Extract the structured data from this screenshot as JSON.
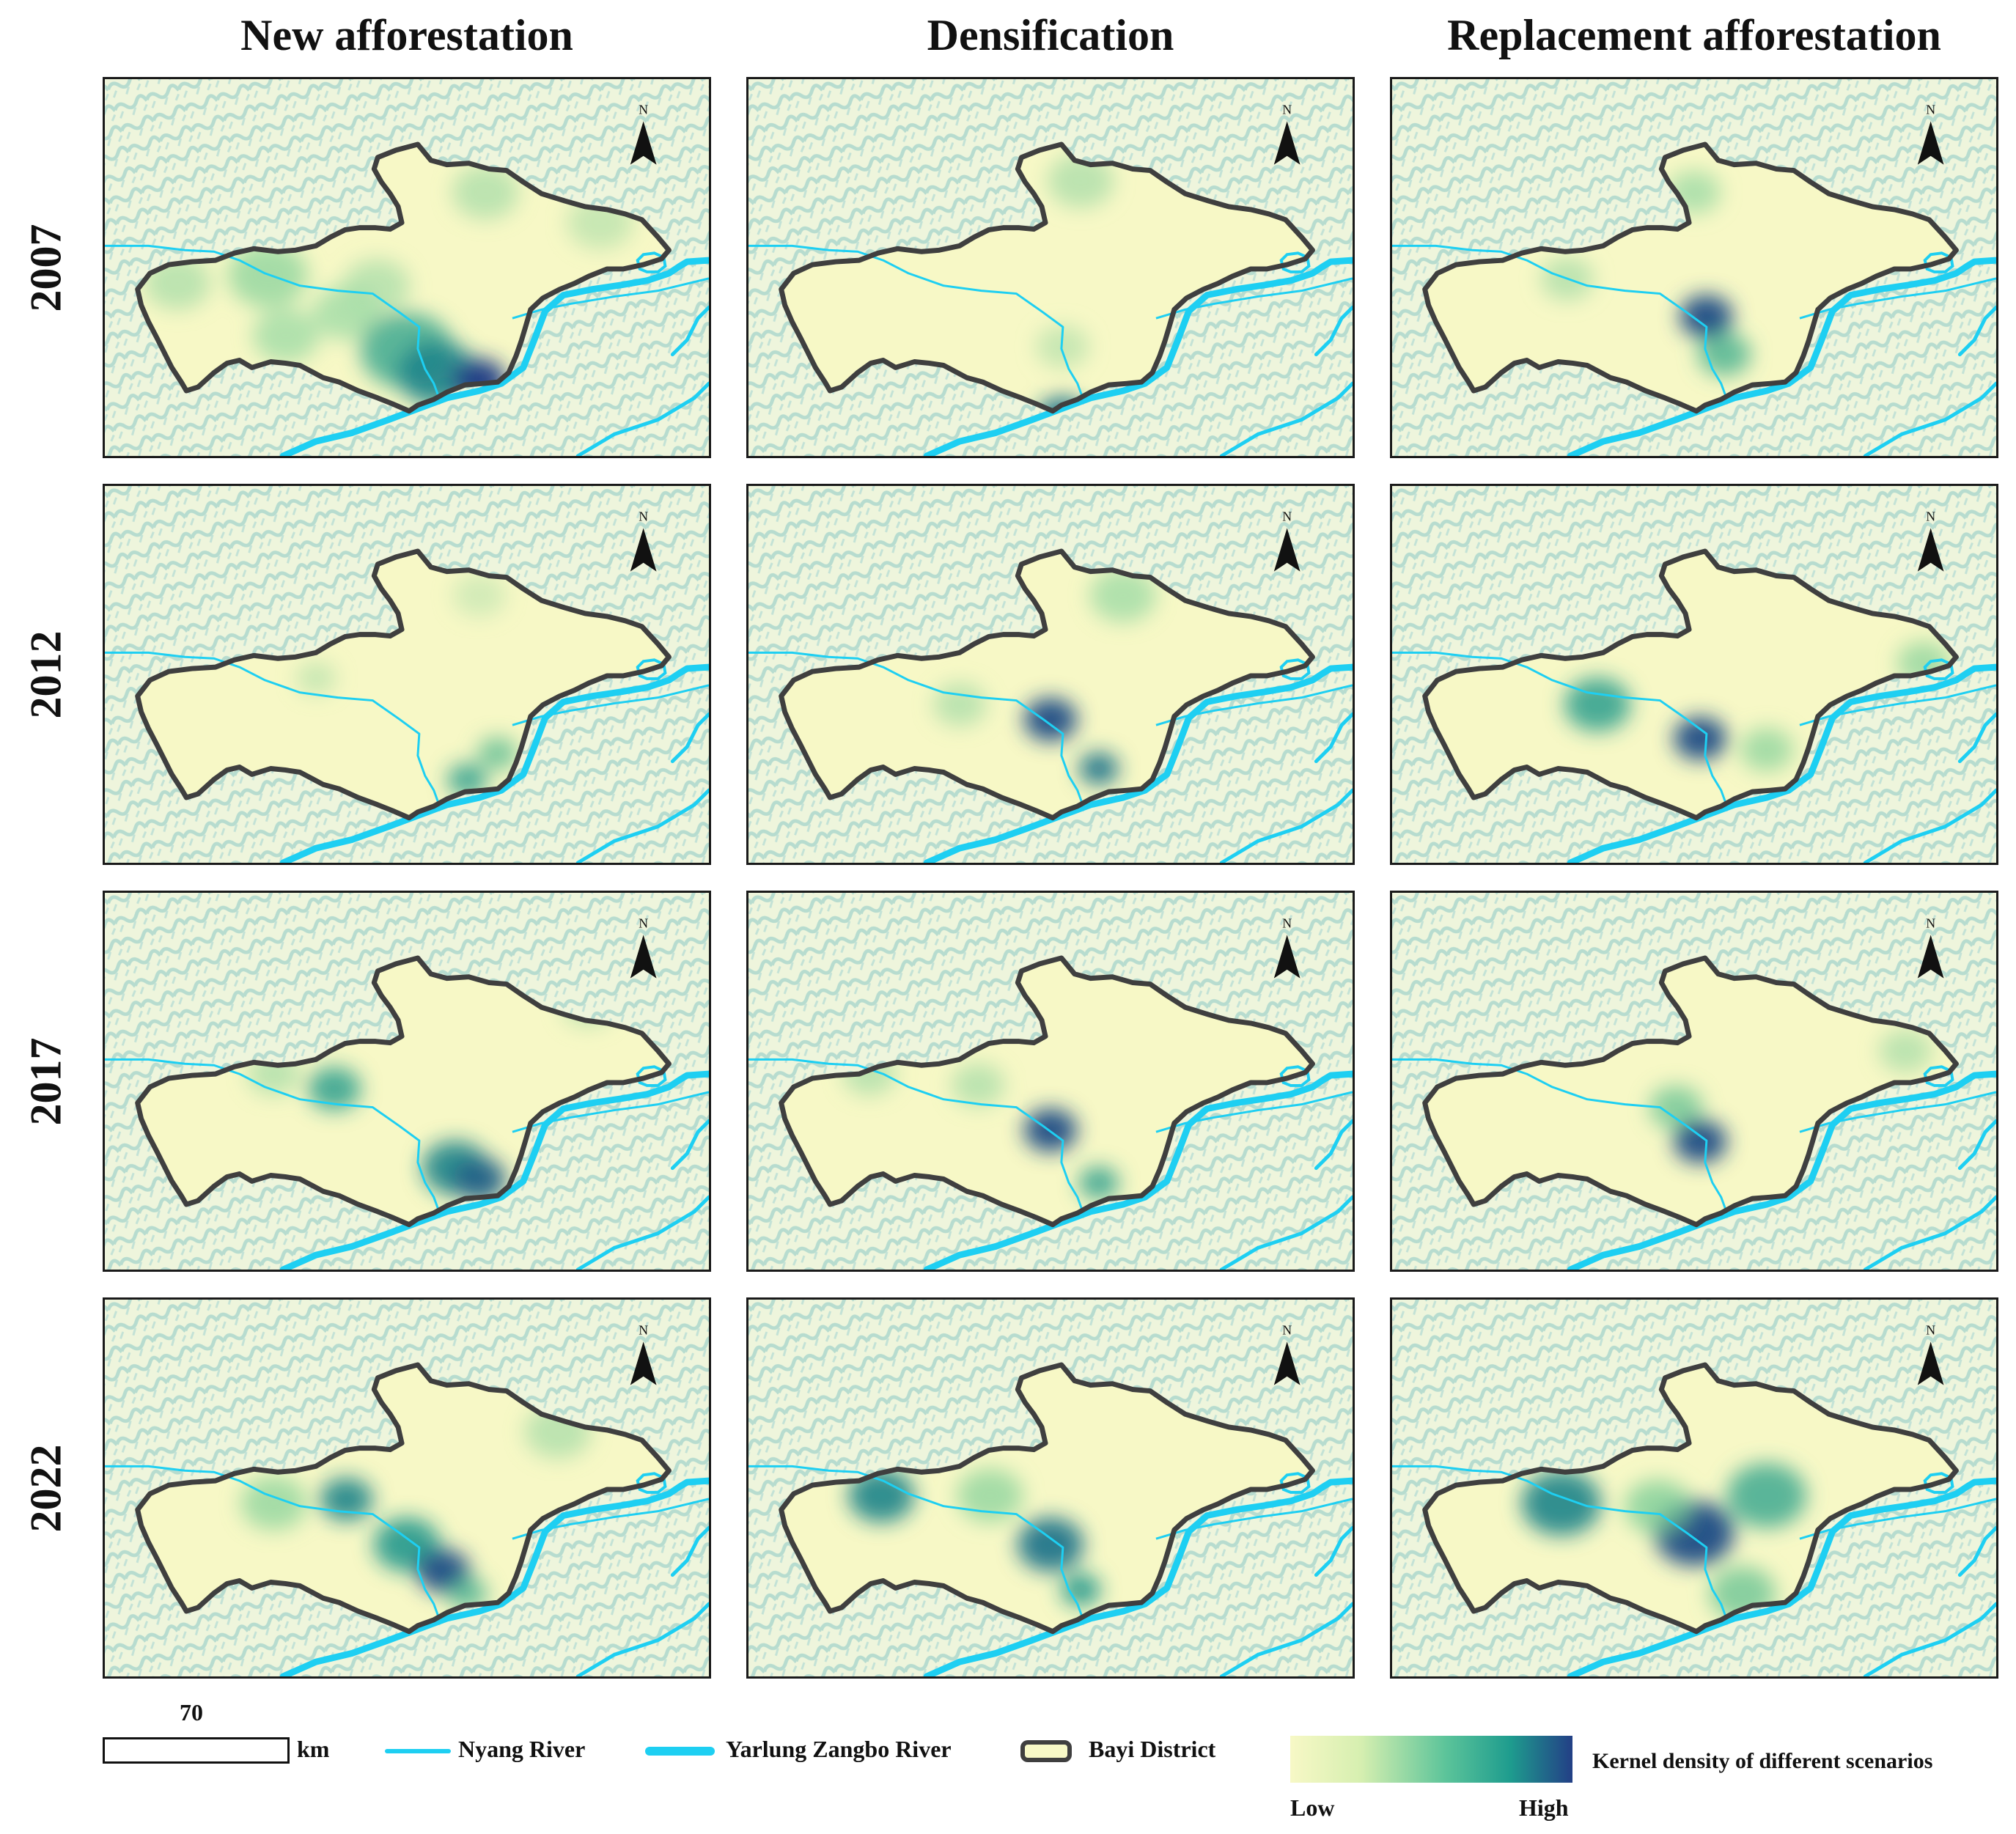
{
  "columns": [
    "New afforestation",
    "Densification",
    "Replacement afforestation"
  ],
  "rows": [
    "2007",
    "2012",
    "2017",
    "2022"
  ],
  "north_label": "N",
  "legend": {
    "scale_value": "70",
    "scale_unit": "km",
    "nyang": "Nyang River",
    "yarlung": "Yarlung Zangbo River",
    "bayi": "Bayi District",
    "kernel_title": "Kernel density of different scenarios",
    "low": "Low",
    "high": "High"
  },
  "colors": {
    "low": "#f7f8c6",
    "mid": "#5cc49a",
    "high": "#233f86",
    "river": "#1ecff2",
    "boundary": "#3f3f3f",
    "terrain": "#a9d6cc"
  },
  "hotspots": [
    [
      [
        [
          0.12,
          0.54,
          0.05,
          0.3
        ],
        [
          0.27,
          0.52,
          0.06,
          0.4
        ],
        [
          0.4,
          0.62,
          0.05,
          0.35
        ],
        [
          0.5,
          0.72,
          0.07,
          0.65
        ],
        [
          0.55,
          0.78,
          0.06,
          0.8
        ],
        [
          0.62,
          0.8,
          0.04,
          1.0
        ],
        [
          0.63,
          0.3,
          0.05,
          0.3
        ],
        [
          0.82,
          0.38,
          0.05,
          0.25
        ],
        [
          0.3,
          0.68,
          0.05,
          0.35
        ],
        [
          0.45,
          0.55,
          0.05,
          0.3
        ]
      ],
      [
        [
          0.52,
          0.9,
          0.04,
          0.85
        ],
        [
          0.55,
          0.27,
          0.05,
          0.3
        ],
        [
          0.52,
          0.71,
          0.04,
          0.25
        ]
      ],
      [
        [
          0.52,
          0.63,
          0.04,
          0.95
        ],
        [
          0.55,
          0.73,
          0.04,
          0.6
        ],
        [
          0.29,
          0.53,
          0.04,
          0.3
        ],
        [
          0.5,
          0.3,
          0.04,
          0.35
        ]
      ]
    ],
    [
      [
        [
          0.65,
          0.71,
          0.03,
          0.55
        ],
        [
          0.6,
          0.78,
          0.03,
          0.7
        ],
        [
          0.35,
          0.51,
          0.03,
          0.25
        ],
        [
          0.62,
          0.29,
          0.04,
          0.2
        ]
      ],
      [
        [
          0.5,
          0.62,
          0.04,
          0.95
        ],
        [
          0.58,
          0.75,
          0.03,
          0.85
        ],
        [
          0.35,
          0.58,
          0.04,
          0.3
        ],
        [
          0.62,
          0.29,
          0.05,
          0.35
        ]
      ],
      [
        [
          0.34,
          0.58,
          0.05,
          0.7
        ],
        [
          0.51,
          0.67,
          0.04,
          0.95
        ],
        [
          0.62,
          0.7,
          0.04,
          0.4
        ],
        [
          0.88,
          0.47,
          0.04,
          0.4
        ]
      ]
    ],
    [
      [
        [
          0.38,
          0.52,
          0.04,
          0.7
        ],
        [
          0.58,
          0.73,
          0.05,
          0.8
        ],
        [
          0.62,
          0.76,
          0.04,
          0.9
        ],
        [
          0.28,
          0.48,
          0.04,
          0.3
        ],
        [
          0.8,
          0.3,
          0.04,
          0.25
        ]
      ],
      [
        [
          0.5,
          0.63,
          0.04,
          0.95
        ],
        [
          0.58,
          0.77,
          0.03,
          0.7
        ],
        [
          0.2,
          0.48,
          0.04,
          0.3
        ],
        [
          0.38,
          0.51,
          0.04,
          0.3
        ]
      ],
      [
        [
          0.47,
          0.57,
          0.04,
          0.5
        ],
        [
          0.51,
          0.66,
          0.04,
          0.95
        ],
        [
          0.85,
          0.42,
          0.04,
          0.3
        ]
      ]
    ],
    [
      [
        [
          0.4,
          0.53,
          0.04,
          0.8
        ],
        [
          0.5,
          0.65,
          0.05,
          0.75
        ],
        [
          0.56,
          0.72,
          0.04,
          0.95
        ],
        [
          0.6,
          0.78,
          0.03,
          0.6
        ],
        [
          0.28,
          0.54,
          0.05,
          0.4
        ],
        [
          0.75,
          0.35,
          0.05,
          0.3
        ]
      ],
      [
        [
          0.22,
          0.52,
          0.05,
          0.8
        ],
        [
          0.5,
          0.65,
          0.05,
          0.85
        ],
        [
          0.55,
          0.77,
          0.03,
          0.75
        ],
        [
          0.4,
          0.52,
          0.05,
          0.4
        ]
      ],
      [
        [
          0.28,
          0.54,
          0.06,
          0.8
        ],
        [
          0.5,
          0.62,
          0.06,
          0.95
        ],
        [
          0.62,
          0.52,
          0.06,
          0.65
        ],
        [
          0.44,
          0.55,
          0.05,
          0.45
        ],
        [
          0.58,
          0.78,
          0.05,
          0.5
        ]
      ]
    ]
  ]
}
